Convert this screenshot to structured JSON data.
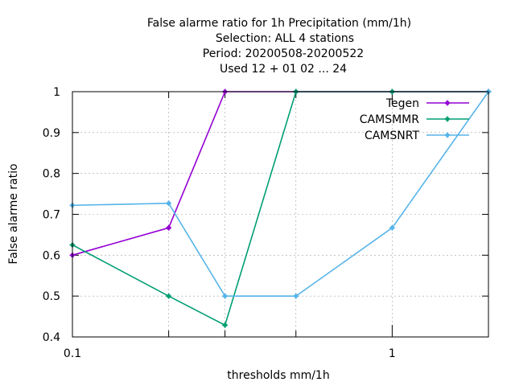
{
  "chart_data": {
    "type": "line",
    "title_lines": [
      "False alarme ratio  for 1h Precipitation (mm/1h)",
      "Selection: ALL      4 stations",
      "Period: 20200508-20200522",
      "Used  12 + 01 02 ... 24"
    ],
    "xlabel": "thresholds mm/1h",
    "ylabel": "False alarme ratio",
    "x_scale": "log",
    "xlim": [
      0.1,
      2
    ],
    "ylim": [
      0.4,
      1
    ],
    "x_ticks": [
      0.1,
      1
    ],
    "x_tick_labels": [
      "0.1",
      "1"
    ],
    "x_minor_ticks": [
      0.2,
      0.3,
      0.5,
      2
    ],
    "y_ticks": [
      0.4,
      0.5,
      0.6,
      0.7,
      0.8,
      0.9,
      1
    ],
    "y_tick_labels": [
      "0.4",
      "0.5",
      "0.6",
      "0.7",
      "0.8",
      "0.9",
      "1"
    ],
    "grid": true,
    "legend_position": "top-right",
    "x": [
      0.1,
      0.2,
      0.3,
      0.5,
      1,
      2
    ],
    "series": [
      {
        "name": "Tegen",
        "color": "#9400d3",
        "values": [
          0.6,
          0.667,
          1.0,
          1.0,
          1.0,
          1.0
        ]
      },
      {
        "name": "CAMSMMR",
        "color": "#009e73",
        "values": [
          0.625,
          0.5,
          0.429,
          1.0,
          1.0,
          1.0
        ]
      },
      {
        "name": "CAMSNRT",
        "color": "#56b4e9",
        "values": [
          0.722,
          0.727,
          0.5,
          0.5,
          0.667,
          1.0
        ]
      }
    ]
  }
}
